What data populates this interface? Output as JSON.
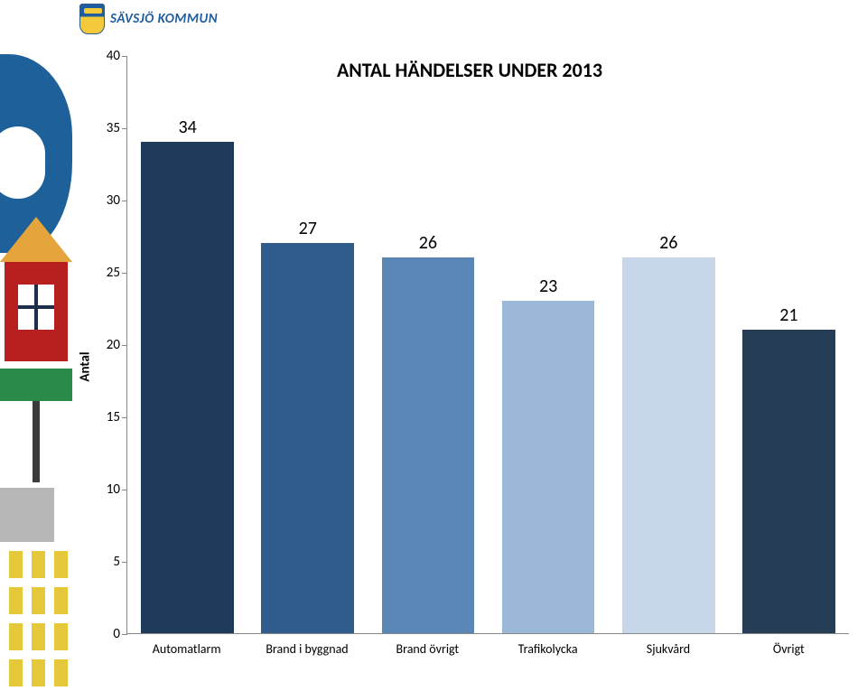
{
  "logo": {
    "text": "SÄVSJÖ KOMMUN"
  },
  "chart": {
    "type": "bar",
    "title": "ANTAL HÄNDELSER UNDER 2013",
    "title_fontsize": 22,
    "ylabel": "Antal",
    "label_fontsize": 15,
    "ylim": [
      0,
      40
    ],
    "ytick_step": 5,
    "yticks": [
      0,
      5,
      10,
      15,
      20,
      25,
      30,
      35,
      40
    ],
    "categories": [
      "Automatlarm",
      "Brand i byggnad",
      "Brand övrigt",
      "Trafikolycka",
      "Sjukvård",
      "Övrigt"
    ],
    "values": [
      34,
      27,
      26,
      23,
      26,
      21
    ],
    "bar_colors": [
      "#1f3b5a",
      "#2f5c8b",
      "#5b87b7",
      "#9bb8d6",
      "#c7d6e8",
      "#263d56"
    ],
    "bar_width": 0.77,
    "background_color": "#ffffff",
    "axis_color": "#888888",
    "value_label_fontsize": 20,
    "xtick_fontsize": 14
  }
}
